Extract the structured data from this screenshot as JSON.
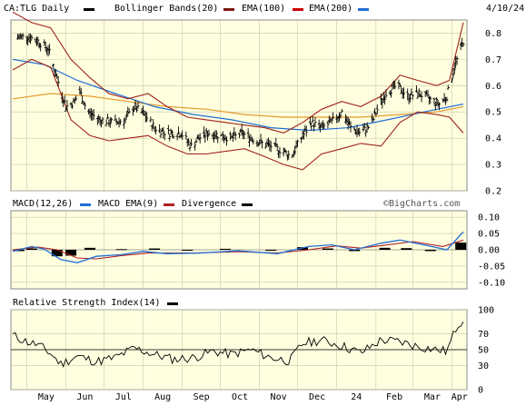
{
  "header": {
    "ticker_label": "CA:TLG Daily",
    "date": "4/10/24",
    "legend": [
      {
        "label": "Bollinger Bands(20)",
        "color": "#7a1a10"
      },
      {
        "label": "EMA(100)",
        "color": "#cc0000"
      },
      {
        "label": "EMA(200)",
        "color": "#e59a2a"
      }
    ],
    "ticker_color": "#000000",
    "ema200_line_color": "#1f6fd6"
  },
  "macd_panel": {
    "legend": [
      {
        "label": "MACD(12,26)",
        "color": "#1f6fd6"
      },
      {
        "label": "MACD EMA(9)",
        "color": "#1f6fd6"
      },
      {
        "label": "Divergence",
        "color": "#b22222"
      }
    ],
    "divergence_swatch_color": "#000000",
    "watermark": "©BigCharts.com"
  },
  "rsi_panel": {
    "legend": {
      "label": "Relative Strength Index(14)",
      "color": "#000000"
    }
  },
  "x_axis": {
    "labels": [
      "May",
      "Jun",
      "Jul",
      "Aug",
      "Sep",
      "Oct",
      "Nov",
      "Dec",
      "24",
      "Feb",
      "Mar",
      "Apr"
    ]
  },
  "chart_data": [
    {
      "type": "ohlc",
      "name": "price",
      "ylim": [
        0.2,
        0.85
      ],
      "y_ticks": [
        "0.2",
        "0.3",
        "0.4",
        "0.5",
        "0.6",
        "0.7",
        "0.8"
      ],
      "x_start": "2023-04-20",
      "x_end": "2024-04-10",
      "points": [
        [
          "2023-04-22",
          0.78
        ],
        [
          "2023-05-01",
          0.79
        ],
        [
          "2023-05-10",
          0.77
        ],
        [
          "2023-05-18",
          0.74
        ],
        [
          "2023-05-25",
          0.63
        ],
        [
          "2023-06-01",
          0.52
        ],
        [
          "2023-06-08",
          0.54
        ],
        [
          "2023-06-12",
          0.58
        ],
        [
          "2023-06-18",
          0.5
        ],
        [
          "2023-06-28",
          0.47
        ],
        [
          "2023-07-08",
          0.46
        ],
        [
          "2023-07-18",
          0.47
        ],
        [
          "2023-07-25",
          0.52
        ],
        [
          "2023-08-02",
          0.49
        ],
        [
          "2023-08-10",
          0.44
        ],
        [
          "2023-08-20",
          0.42
        ],
        [
          "2023-08-31",
          0.42
        ],
        [
          "2023-09-08",
          0.37
        ],
        [
          "2023-09-14",
          0.4
        ],
        [
          "2023-09-22",
          0.42
        ],
        [
          "2023-10-01",
          0.41
        ],
        [
          "2023-10-10",
          0.4
        ],
        [
          "2023-10-18",
          0.42
        ],
        [
          "2023-10-26",
          0.4
        ],
        [
          "2023-11-03",
          0.38
        ],
        [
          "2023-11-10",
          0.37
        ],
        [
          "2023-11-20",
          0.35
        ],
        [
          "2023-11-26",
          0.33
        ],
        [
          "2023-12-04",
          0.4
        ],
        [
          "2023-12-12",
          0.46
        ],
        [
          "2023-12-20",
          0.44
        ],
        [
          "2023-12-28",
          0.46
        ],
        [
          "2024-01-05",
          0.5
        ],
        [
          "2024-01-12",
          0.44
        ],
        [
          "2024-01-20",
          0.42
        ],
        [
          "2024-01-28",
          0.45
        ],
        [
          "2024-02-03",
          0.52
        ],
        [
          "2024-02-10",
          0.58
        ],
        [
          "2024-02-18",
          0.6
        ],
        [
          "2024-02-26",
          0.56
        ],
        [
          "2024-03-06",
          0.57
        ],
        [
          "2024-03-14",
          0.55
        ],
        [
          "2024-03-22",
          0.53
        ],
        [
          "2024-03-28",
          0.56
        ],
        [
          "2024-04-03",
          0.67
        ],
        [
          "2024-04-10",
          0.77
        ]
      ],
      "bollinger_upper": [
        [
          "2023-04-20",
          0.88
        ],
        [
          "2023-05-05",
          0.84
        ],
        [
          "2023-05-20",
          0.82
        ],
        [
          "2023-06-05",
          0.7
        ],
        [
          "2023-06-20",
          0.63
        ],
        [
          "2023-07-05",
          0.57
        ],
        [
          "2023-07-20",
          0.55
        ],
        [
          "2023-08-05",
          0.57
        ],
        [
          "2023-08-20",
          0.52
        ],
        [
          "2023-09-05",
          0.48
        ],
        [
          "2023-09-20",
          0.47
        ],
        [
          "2023-10-05",
          0.46
        ],
        [
          "2023-10-20",
          0.45
        ],
        [
          "2023-11-05",
          0.44
        ],
        [
          "2023-11-20",
          0.42
        ],
        [
          "2023-12-05",
          0.46
        ],
        [
          "2023-12-20",
          0.51
        ],
        [
          "2024-01-05",
          0.54
        ],
        [
          "2024-01-20",
          0.52
        ],
        [
          "2024-02-05",
          0.56
        ],
        [
          "2024-02-20",
          0.64
        ],
        [
          "2024-03-05",
          0.62
        ],
        [
          "2024-03-20",
          0.6
        ],
        [
          "2024-03-30",
          0.62
        ],
        [
          "2024-04-10",
          0.84
        ]
      ],
      "bollinger_lower": [
        [
          "2023-04-20",
          0.66
        ],
        [
          "2023-05-05",
          0.7
        ],
        [
          "2023-05-20",
          0.67
        ],
        [
          "2023-06-05",
          0.47
        ],
        [
          "2023-06-20",
          0.41
        ],
        [
          "2023-07-05",
          0.39
        ],
        [
          "2023-07-20",
          0.4
        ],
        [
          "2023-08-05",
          0.41
        ],
        [
          "2023-08-20",
          0.37
        ],
        [
          "2023-09-05",
          0.34
        ],
        [
          "2023-09-20",
          0.34
        ],
        [
          "2023-10-05",
          0.35
        ],
        [
          "2023-10-20",
          0.36
        ],
        [
          "2023-11-05",
          0.33
        ],
        [
          "2023-11-20",
          0.3
        ],
        [
          "2023-12-05",
          0.28
        ],
        [
          "2023-12-20",
          0.34
        ],
        [
          "2024-01-05",
          0.36
        ],
        [
          "2024-01-20",
          0.38
        ],
        [
          "2024-02-05",
          0.37
        ],
        [
          "2024-02-20",
          0.46
        ],
        [
          "2024-03-05",
          0.5
        ],
        [
          "2024-03-20",
          0.49
        ],
        [
          "2024-03-30",
          0.48
        ],
        [
          "2024-04-10",
          0.42
        ]
      ],
      "ema100": [
        [
          "2023-04-20",
          0.7
        ],
        [
          "2023-05-15",
          0.68
        ],
        [
          "2023-06-10",
          0.62
        ],
        [
          "2023-07-10",
          0.57
        ],
        [
          "2023-08-10",
          0.52
        ],
        [
          "2023-09-10",
          0.49
        ],
        [
          "2023-10-10",
          0.47
        ],
        [
          "2023-11-10",
          0.44
        ],
        [
          "2023-12-10",
          0.43
        ],
        [
          "2024-01-10",
          0.44
        ],
        [
          "2024-02-10",
          0.47
        ],
        [
          "2024-03-10",
          0.5
        ],
        [
          "2024-04-10",
          0.53
        ]
      ],
      "ema200": [
        [
          "2023-04-20",
          0.55
        ],
        [
          "2023-05-20",
          0.57
        ],
        [
          "2023-06-20",
          0.56
        ],
        [
          "2023-07-20",
          0.54
        ],
        [
          "2023-08-20",
          0.52
        ],
        [
          "2023-09-20",
          0.51
        ],
        [
          "2023-10-20",
          0.49
        ],
        [
          "2023-11-20",
          0.48
        ],
        [
          "2023-12-20",
          0.48
        ],
        [
          "2024-01-20",
          0.48
        ],
        [
          "2024-02-20",
          0.49
        ],
        [
          "2024-03-20",
          0.5
        ],
        [
          "2024-04-10",
          0.52
        ]
      ]
    },
    {
      "type": "macd",
      "name": "MACD(12,26)",
      "ylim": [
        -0.12,
        0.12
      ],
      "y_ticks": [
        "0.10",
        "0.05",
        "0.00",
        "-0.05",
        "-0.10"
      ],
      "macd": [
        [
          "2023-04-20",
          -0.005
        ],
        [
          "2023-05-05",
          0.01
        ],
        [
          "2023-05-15",
          0.002
        ],
        [
          "2023-05-28",
          -0.03
        ],
        [
          "2023-06-10",
          -0.04
        ],
        [
          "2023-06-25",
          -0.02
        ],
        [
          "2023-07-15",
          -0.015
        ],
        [
          "2023-08-01",
          -0.005
        ],
        [
          "2023-08-20",
          -0.012
        ],
        [
          "2023-09-15",
          -0.01
        ],
        [
          "2023-10-15",
          -0.003
        ],
        [
          "2023-11-15",
          -0.012
        ],
        [
          "2023-12-10",
          0.01
        ],
        [
          "2023-12-28",
          0.015
        ],
        [
          "2024-01-15",
          0.0
        ],
        [
          "2024-02-05",
          0.02
        ],
        [
          "2024-02-20",
          0.03
        ],
        [
          "2024-03-10",
          0.015
        ],
        [
          "2024-03-28",
          0.0
        ],
        [
          "2024-04-10",
          0.055
        ]
      ],
      "signal": [
        [
          "2023-04-20",
          0.0
        ],
        [
          "2023-05-10",
          0.008
        ],
        [
          "2023-05-25",
          0.0
        ],
        [
          "2023-06-10",
          -0.025
        ],
        [
          "2023-06-25",
          -0.028
        ],
        [
          "2023-07-15",
          -0.018
        ],
        [
          "2023-08-05",
          -0.01
        ],
        [
          "2023-09-10",
          -0.01
        ],
        [
          "2023-10-15",
          -0.006
        ],
        [
          "2023-11-15",
          -0.01
        ],
        [
          "2023-12-10",
          0.0
        ],
        [
          "2024-01-01",
          0.012
        ],
        [
          "2024-01-20",
          0.005
        ],
        [
          "2024-02-10",
          0.015
        ],
        [
          "2024-03-01",
          0.025
        ],
        [
          "2024-03-25",
          0.01
        ],
        [
          "2024-04-10",
          0.03
        ]
      ],
      "divergence": [
        [
          "2023-04-25",
          -0.004
        ],
        [
          "2023-05-05",
          0.004
        ],
        [
          "2023-05-25",
          -0.02
        ],
        [
          "2023-06-05",
          -0.018
        ],
        [
          "2023-06-20",
          0.006
        ],
        [
          "2023-07-15",
          0.002
        ],
        [
          "2023-08-10",
          0.004
        ],
        [
          "2023-09-05",
          -0.002
        ],
        [
          "2023-10-05",
          0.003
        ],
        [
          "2023-11-10",
          -0.003
        ],
        [
          "2023-12-05",
          0.008
        ],
        [
          "2023-12-25",
          0.004
        ],
        [
          "2024-01-15",
          -0.004
        ],
        [
          "2024-02-08",
          0.006
        ],
        [
          "2024-02-25",
          0.005
        ],
        [
          "2024-03-15",
          -0.004
        ],
        [
          "2024-04-08",
          0.022
        ]
      ]
    },
    {
      "type": "line",
      "name": "Relative Strength Index(14)",
      "ylim": [
        0,
        100
      ],
      "y_ticks": [
        "100",
        "70",
        "50",
        "30",
        "0"
      ],
      "reference_line": 50,
      "points": [
        [
          "2023-04-20",
          68
        ],
        [
          "2023-05-01",
          60
        ],
        [
          "2023-05-10",
          56
        ],
        [
          "2023-05-20",
          45
        ],
        [
          "2023-05-28",
          32
        ],
        [
          "2023-06-10",
          42
        ],
        [
          "2023-06-25",
          35
        ],
        [
          "2023-07-10",
          40
        ],
        [
          "2023-07-25",
          52
        ],
        [
          "2023-08-10",
          44
        ],
        [
          "2023-08-25",
          38
        ],
        [
          "2023-09-10",
          40
        ],
        [
          "2023-09-25",
          48
        ],
        [
          "2023-10-10",
          44
        ],
        [
          "2023-10-25",
          50
        ],
        [
          "2023-11-10",
          40
        ],
        [
          "2023-11-25",
          36
        ],
        [
          "2023-12-05",
          58
        ],
        [
          "2023-12-20",
          62
        ],
        [
          "2024-01-05",
          55
        ],
        [
          "2024-01-20",
          46
        ],
        [
          "2024-02-05",
          62
        ],
        [
          "2024-02-20",
          60
        ],
        [
          "2024-03-05",
          54
        ],
        [
          "2024-03-20",
          50
        ],
        [
          "2024-03-28",
          48
        ],
        [
          "2024-04-05",
          80
        ],
        [
          "2024-04-10",
          88
        ]
      ]
    }
  ]
}
